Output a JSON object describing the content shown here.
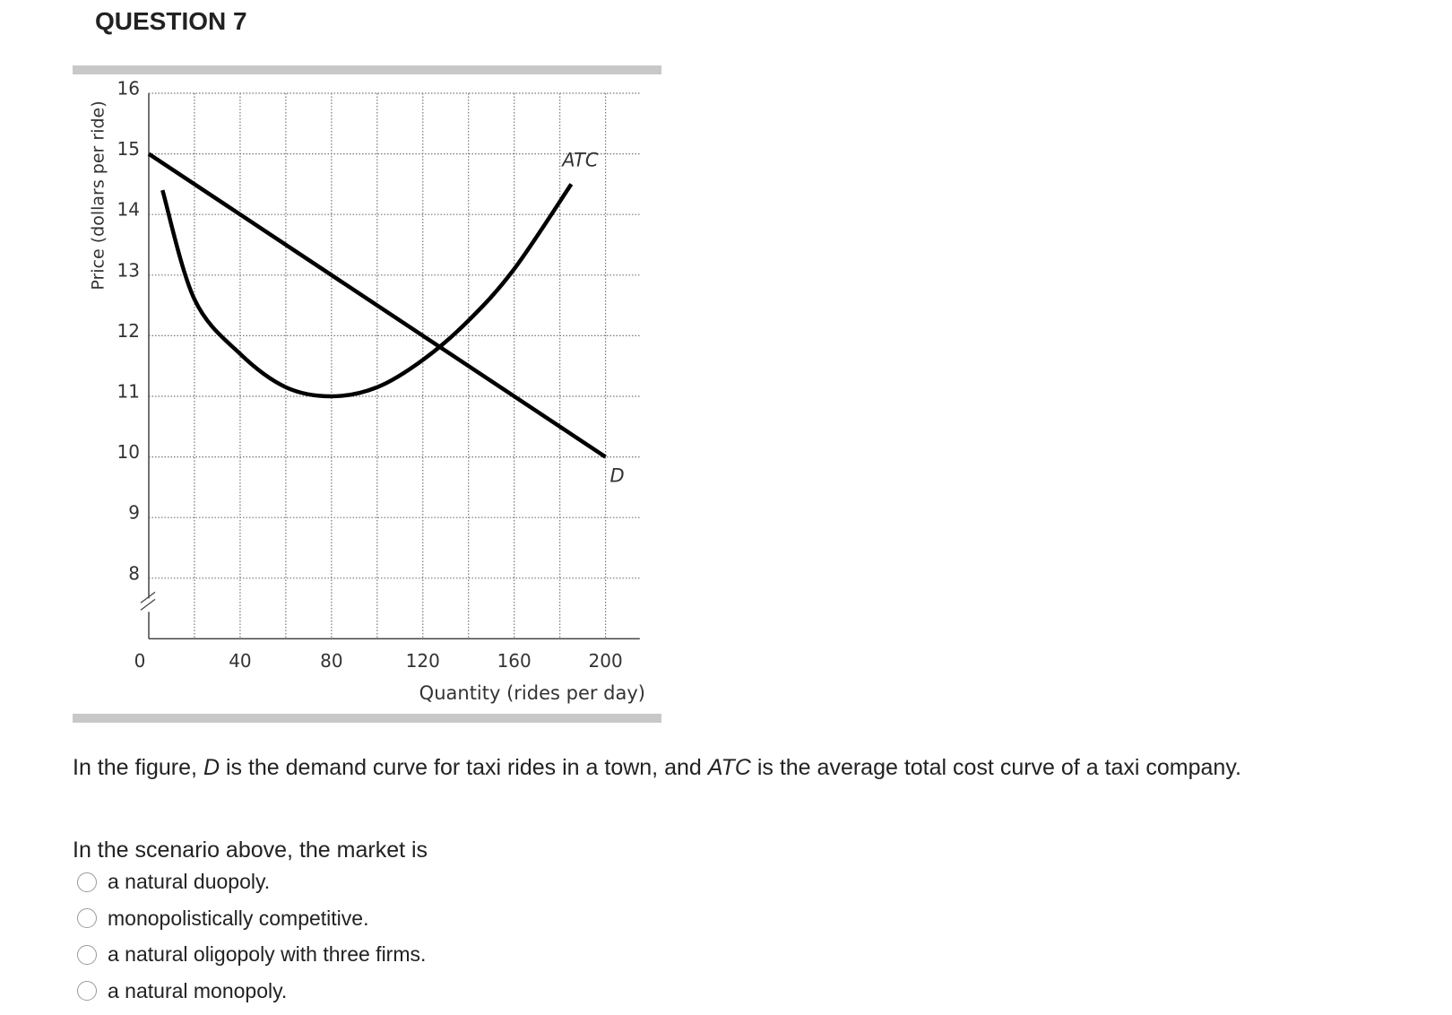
{
  "header": {
    "title": "QUESTION 7"
  },
  "chart_data": {
    "type": "line",
    "xlabel": "Quantity (rides per day)",
    "ylabel": "Price (dollars per ride)",
    "xlim": [
      0,
      215
    ],
    "ylim": [
      7,
      16
    ],
    "xticks": [
      0,
      40,
      80,
      120,
      160,
      200
    ],
    "yticks": [
      8,
      9,
      10,
      11,
      12,
      13,
      14,
      15,
      16
    ],
    "x_gridlines": [
      20,
      40,
      60,
      80,
      100,
      120,
      140,
      160,
      180,
      200
    ],
    "grid": true,
    "series": [
      {
        "name": "D",
        "color": "#000000",
        "x": [
          0,
          200
        ],
        "values": [
          15,
          10
        ]
      },
      {
        "name": "ATC",
        "color": "#000000",
        "x": [
          6,
          20,
          40,
          60,
          80,
          100,
          120,
          140,
          160,
          185
        ],
        "values": [
          14.4,
          12.6,
          11.7,
          11.15,
          11,
          11.15,
          11.6,
          12.25,
          13.1,
          14.5
        ]
      }
    ]
  },
  "description": [
    "In the figure, ",
    "D",
    " is the demand curve for taxi rides in a town, and ",
    "ATC",
    " is the average total cost curve of a taxi company."
  ],
  "prompt": "In the scenario above, the market is",
  "options": [
    "a natural duopoly.",
    "monopolistically competitive.",
    "a natural oligopoly with three firms.",
    "a natural monopoly."
  ]
}
